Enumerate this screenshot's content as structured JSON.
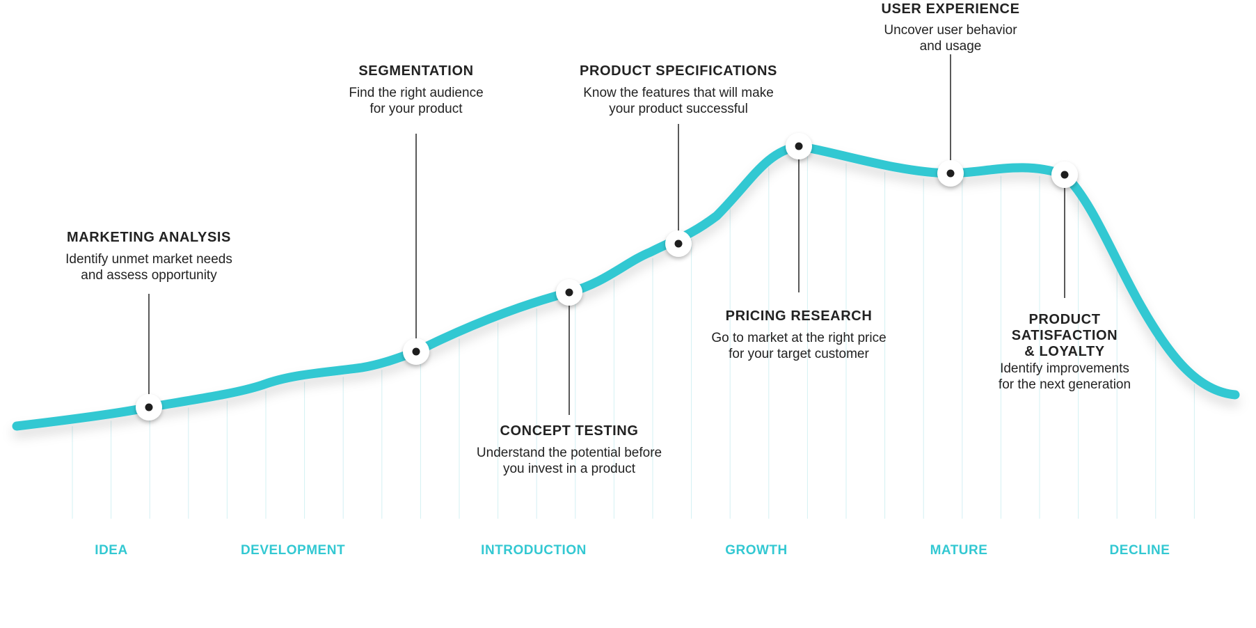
{
  "colors": {
    "curve": "#33c8d2",
    "stage_text": "#33c8d2",
    "text": "#222222",
    "grid": "#d3f0f3",
    "marker_fill": "#ffffff",
    "marker_dot": "#1e1e1e"
  },
  "stages": [
    {
      "key": "idea",
      "label": "IDEA"
    },
    {
      "key": "development",
      "label": "DEVELOPMENT"
    },
    {
      "key": "introduction",
      "label": "INTRODUCTION"
    },
    {
      "key": "growth",
      "label": "GROWTH"
    },
    {
      "key": "mature",
      "label": "MATURE"
    },
    {
      "key": "decline",
      "label": "DECLINE"
    }
  ],
  "callouts": [
    {
      "key": "marketing-analysis",
      "title": [
        "MARKETING ANALYSIS"
      ],
      "desc": [
        "Identify unmet market needs",
        "and assess opportunity"
      ]
    },
    {
      "key": "segmentation",
      "title": [
        "SEGMENTATION"
      ],
      "desc": [
        "Find the right audience",
        "for your product"
      ]
    },
    {
      "key": "concept-testing",
      "title": [
        "CONCEPT TESTING"
      ],
      "desc": [
        "Understand the potential before",
        "you invest in a product"
      ]
    },
    {
      "key": "product-specifications",
      "title": [
        "PRODUCT SPECIFICATIONS"
      ],
      "desc": [
        "Know the features that will make",
        "your product successful"
      ]
    },
    {
      "key": "pricing-research",
      "title": [
        "PRICING RESEARCH"
      ],
      "desc": [
        "Go to market at the right price",
        "for your target customer"
      ]
    },
    {
      "key": "user-experience",
      "title": [
        "USER EXPERIENCE"
      ],
      "desc": [
        "Uncover user behavior",
        "and usage"
      ]
    },
    {
      "key": "product-satisfaction",
      "title": [
        "PRODUCT",
        "SATISFACTION",
        "& LOYALTY"
      ],
      "desc": [
        "Identify improvements",
        "for the next generation"
      ]
    }
  ]
}
